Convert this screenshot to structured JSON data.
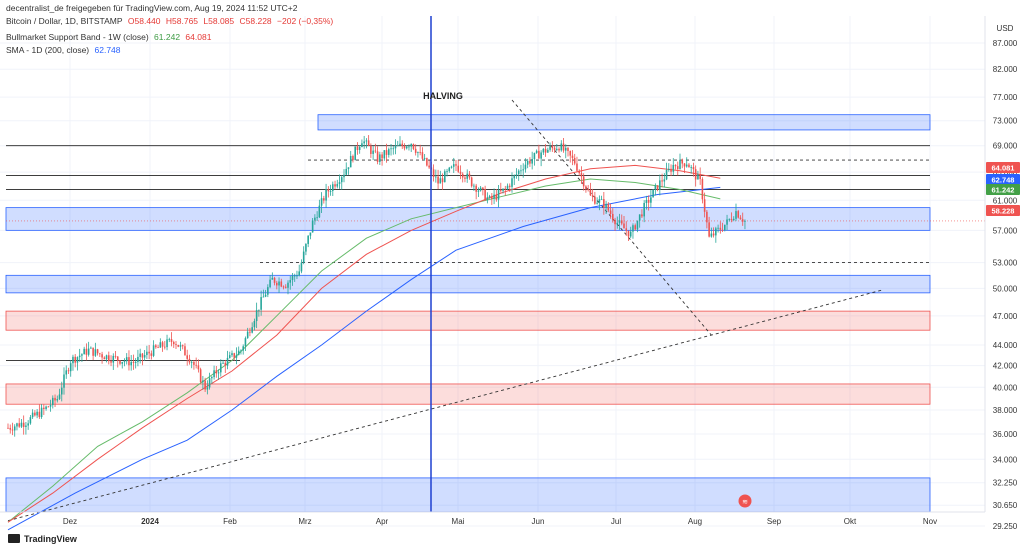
{
  "header": {
    "shared_by": "decentralist_de freigegeben für TradingView.com, Aug 19, 2024 11:52 UTC+2",
    "symbol": "Bitcoin / Dollar, 1D, BITSTAMP",
    "ohlc": {
      "o": "O58.440",
      "h": "H58.765",
      "l": "L58.085",
      "c": "C58.228",
      "chg": "−202 (−0,35%)"
    },
    "ind1_name": "Bullmarket Support Band - 1W (close)",
    "ind1_v1": "61.242",
    "ind1_v2": "64.081",
    "ind2_name": "SMA - 1D (200, close)",
    "ind2_v": "62.748"
  },
  "currency": "USD",
  "footer_brand": "TradingView",
  "colors": {
    "up": "#26a69a",
    "down": "#ef5350",
    "sma200": "#2962ff",
    "band_ema": "#66bb6a",
    "band_sma": "#ef5350"
  },
  "chart_data": {
    "type": "candlestick",
    "title": "Bitcoin / Dollar, 1D, BITSTAMP",
    "y_axis": {
      "unit": "USD (thousands)",
      "range": [
        28.5,
        90
      ],
      "scale": "log",
      "ticks": [
        "29.250",
        "30.650",
        "32.250",
        "34.000",
        "36.000",
        "38.000",
        "40.000",
        "42.000",
        "44.000",
        "47.000",
        "50.000",
        "53.000",
        "57.000",
        "61.000",
        "65.000",
        "69.000",
        "73.000",
        "77.000",
        "82.000",
        "87.000"
      ]
    },
    "x_axis": {
      "ticks": [
        "Dez",
        "2024",
        "Feb",
        "Mrz",
        "Apr",
        "Mai",
        "Jun",
        "Jul",
        "Aug",
        "Sep",
        "Okt",
        "Nov"
      ]
    },
    "price_path": [
      [
        0,
        36.5
      ],
      [
        8,
        37
      ],
      [
        16,
        38
      ],
      [
        22,
        39
      ],
      [
        28,
        42.5
      ],
      [
        36,
        43.5
      ],
      [
        45,
        42.8
      ],
      [
        56,
        42.3
      ],
      [
        65,
        43.5
      ],
      [
        74,
        44.5
      ],
      [
        82,
        42.5
      ],
      [
        88,
        40
      ],
      [
        95,
        42
      ],
      [
        104,
        43.5
      ],
      [
        112,
        48
      ],
      [
        118,
        51
      ],
      [
        124,
        50.5
      ],
      [
        130,
        52
      ],
      [
        136,
        58
      ],
      [
        142,
        62
      ],
      [
        150,
        65
      ],
      [
        158,
        70
      ],
      [
        165,
        67
      ],
      [
        172,
        68.5
      ],
      [
        180,
        69.5
      ],
      [
        187,
        66
      ],
      [
        192,
        63.5
      ],
      [
        200,
        66
      ],
      [
        207,
        63.5
      ],
      [
        215,
        61
      ],
      [
        222,
        62.5
      ],
      [
        230,
        66
      ],
      [
        238,
        68
      ],
      [
        246,
        69
      ],
      [
        253,
        66.5
      ],
      [
        260,
        61.5
      ],
      [
        266,
        60.5
      ],
      [
        272,
        58
      ],
      [
        278,
        56.5
      ],
      [
        284,
        60
      ],
      [
        290,
        63
      ],
      [
        297,
        66
      ],
      [
        303,
        66.5
      ],
      [
        309,
        63.5
      ],
      [
        313,
        56
      ],
      [
        317,
        57
      ],
      [
        321,
        58
      ],
      [
        325,
        59.5
      ],
      [
        329,
        58.2
      ]
    ],
    "indicator_labels": {
      "bullmarket_band_upper": "64.081",
      "sma200": "62.748",
      "bullmarket_band_lower": "61.242",
      "last_price": "58.228"
    },
    "indicators": [
      {
        "name": "SMA 200 (1D)",
        "color": "#2962ff",
        "points": [
          [
            0,
            29
          ],
          [
            30,
            31.5
          ],
          [
            60,
            34
          ],
          [
            80,
            35.5
          ],
          [
            100,
            38
          ],
          [
            120,
            41
          ],
          [
            140,
            44
          ],
          [
            160,
            47.5
          ],
          [
            180,
            51
          ],
          [
            200,
            54.5
          ],
          [
            230,
            57.5
          ],
          [
            260,
            60
          ],
          [
            290,
            61.8
          ],
          [
            318,
            62.8
          ]
        ]
      },
      {
        "name": "Bullmarket band EMA",
        "color": "#66bb6a",
        "points": [
          [
            0,
            29.5
          ],
          [
            20,
            32
          ],
          [
            40,
            35
          ],
          [
            60,
            37
          ],
          [
            80,
            39.5
          ],
          [
            100,
            42.5
          ],
          [
            120,
            47
          ],
          [
            140,
            52
          ],
          [
            160,
            56
          ],
          [
            180,
            58.5
          ],
          [
            200,
            60
          ],
          [
            220,
            61.5
          ],
          [
            240,
            63
          ],
          [
            260,
            64
          ],
          [
            280,
            63.5
          ],
          [
            300,
            62.5
          ],
          [
            318,
            61.2
          ]
        ]
      },
      {
        "name": "Bullmarket band SMA",
        "color": "#ef5350",
        "points": [
          [
            0,
            29.5
          ],
          [
            20,
            31.5
          ],
          [
            40,
            34
          ],
          [
            60,
            36.5
          ],
          [
            80,
            39
          ],
          [
            100,
            41.5
          ],
          [
            120,
            45
          ],
          [
            140,
            50
          ],
          [
            160,
            54
          ],
          [
            180,
            57
          ],
          [
            200,
            59.5
          ],
          [
            220,
            62
          ],
          [
            240,
            64
          ],
          [
            260,
            65.5
          ],
          [
            280,
            66
          ],
          [
            300,
            65.2
          ],
          [
            318,
            64.1
          ]
        ]
      }
    ],
    "zones": [
      {
        "color": "blue",
        "from": 71.5,
        "to": 74
      },
      {
        "color": "blue",
        "from": 57,
        "to": 60
      },
      {
        "color": "blue",
        "from": 49.5,
        "to": 51.5
      },
      {
        "color": "red",
        "from": 45.5,
        "to": 47.5
      },
      {
        "color": "red",
        "from": 38.5,
        "to": 40.3
      },
      {
        "color": "blue",
        "from": 30.2,
        "to": 32.6
      }
    ],
    "horizontal_levels": [
      69,
      64.5,
      62.5,
      42.5
    ],
    "dashed_levels": [
      66.8,
      53
    ],
    "trendlines": [
      {
        "style": "dashed",
        "from": [
          0,
          29.6
        ],
        "to": [
          390,
          49.8
        ]
      },
      {
        "style": "dashed",
        "from": [
          225,
          76.5
        ],
        "to": [
          314,
          45
        ]
      }
    ],
    "annotations": [
      {
        "text": "HALVING",
        "value": 77,
        "day": 185
      }
    ]
  }
}
